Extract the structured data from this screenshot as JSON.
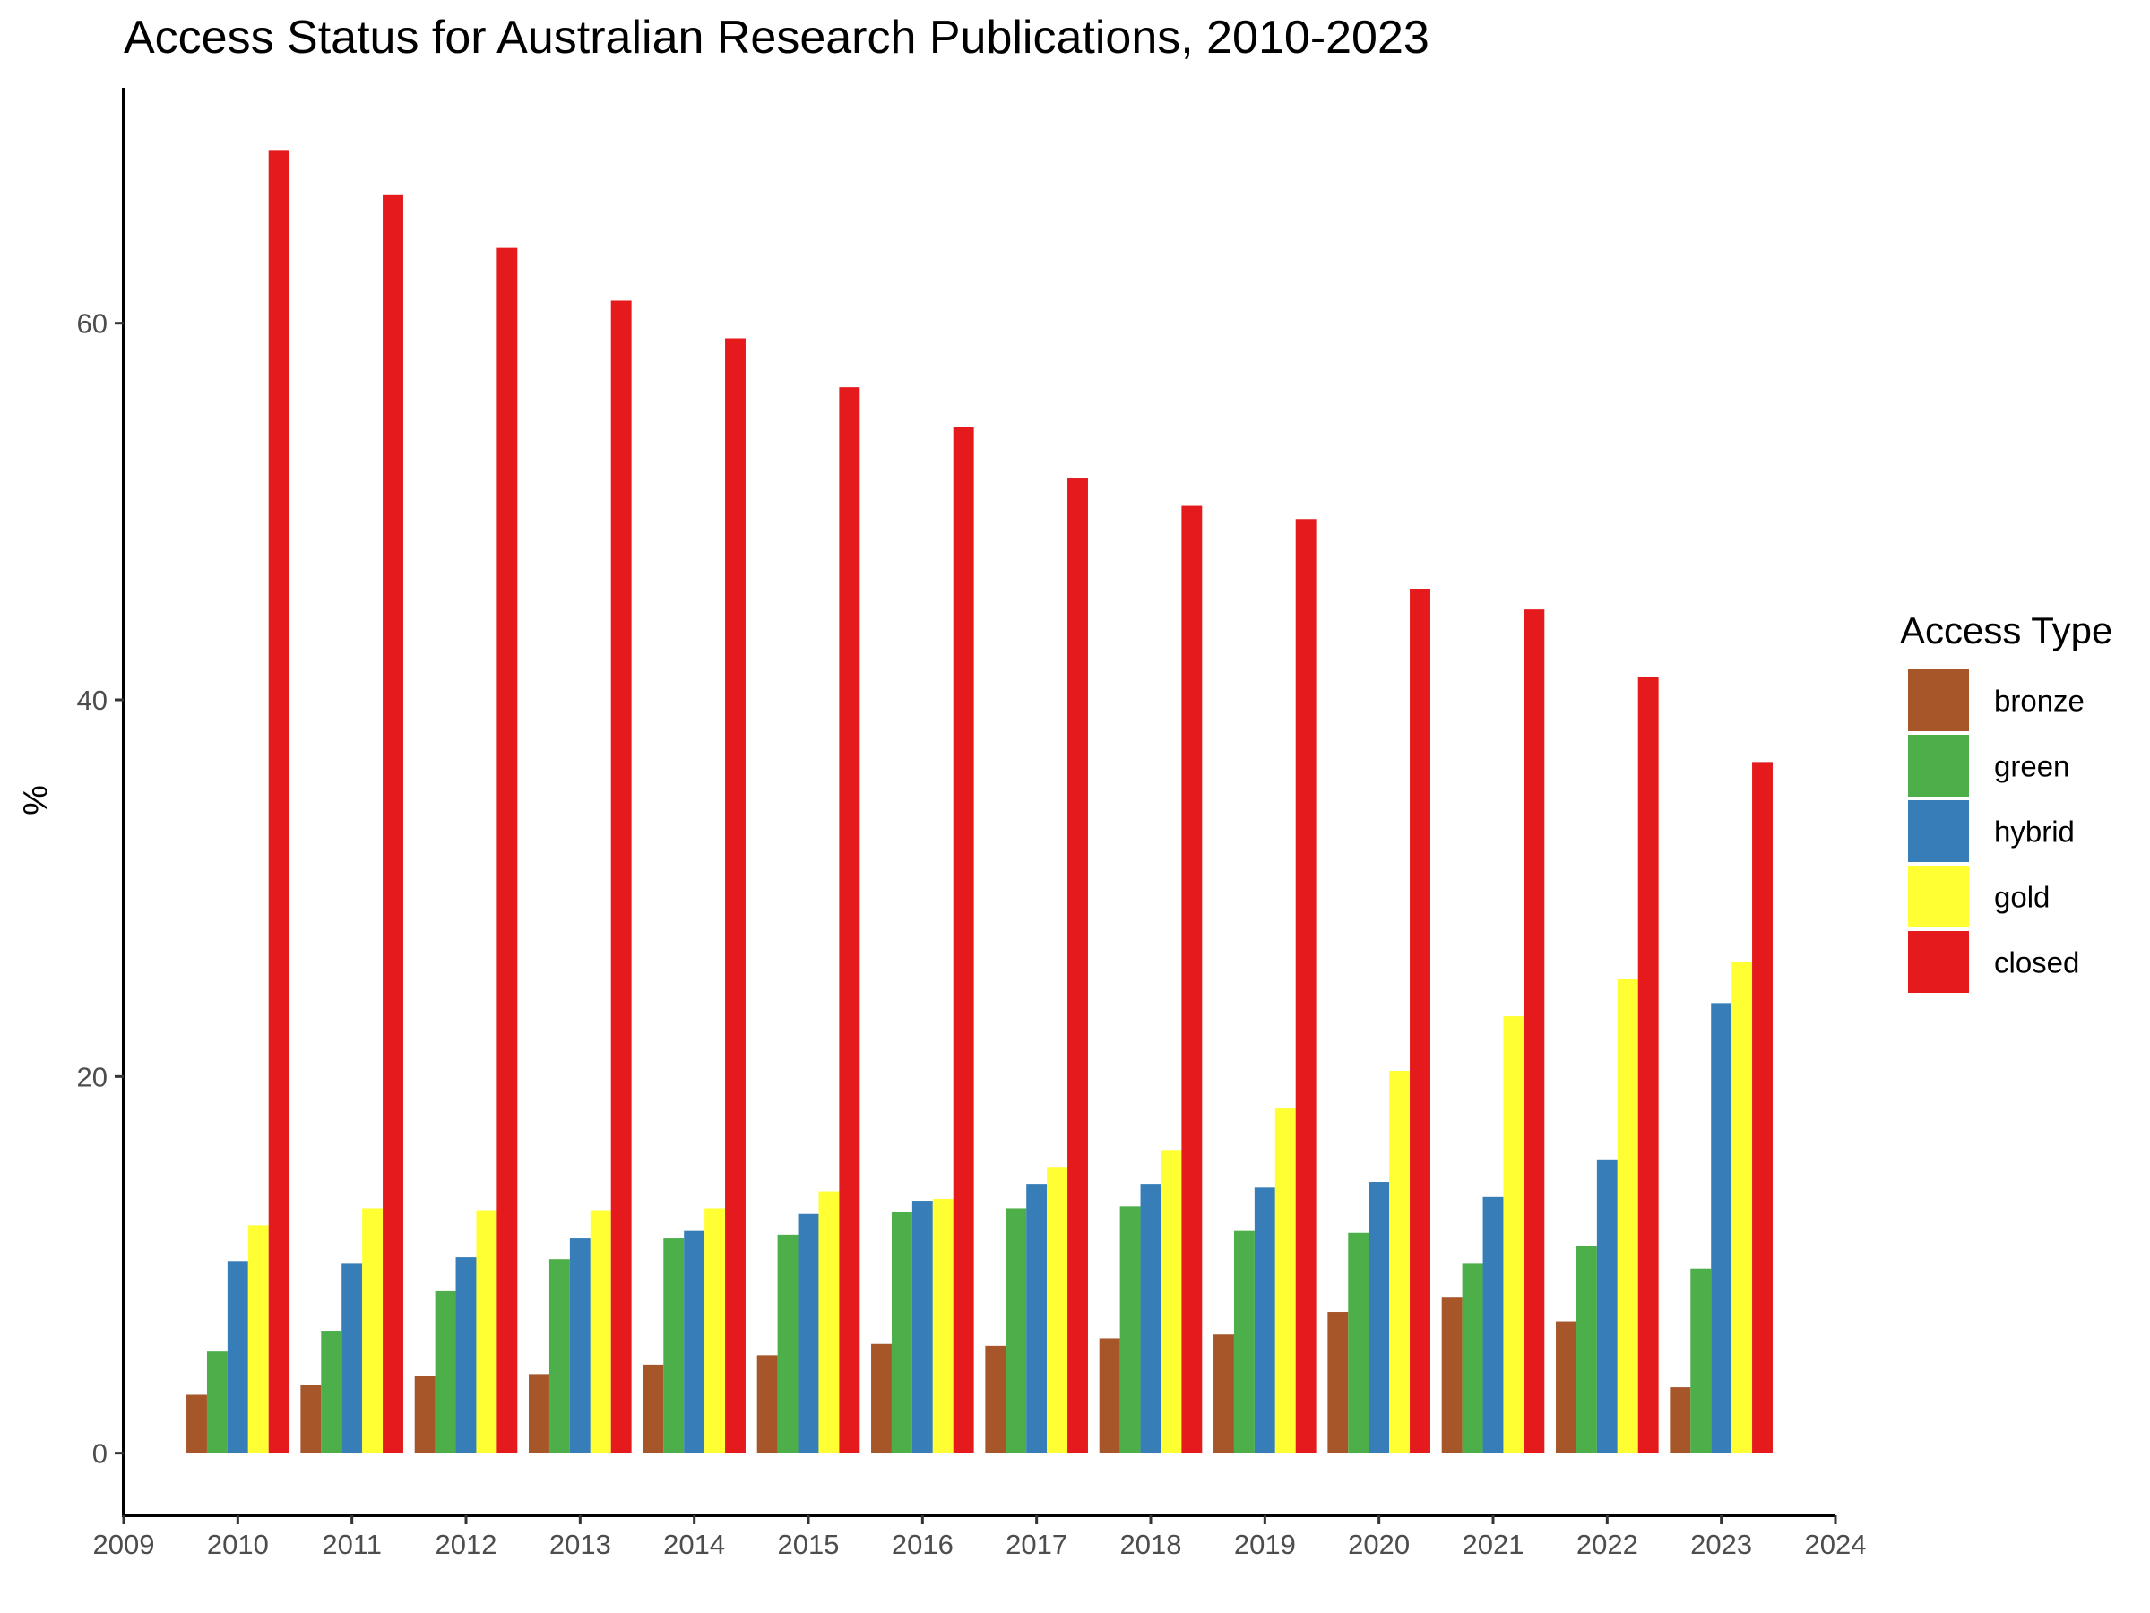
{
  "chart_data": {
    "type": "bar",
    "title": "Access Status for Australian Research Publications, 2010-2023",
    "xlabel": "",
    "ylabel": "%",
    "x_ticks": [
      2009,
      2010,
      2011,
      2012,
      2013,
      2014,
      2015,
      2016,
      2017,
      2018,
      2019,
      2020,
      2021,
      2022,
      2023,
      2024
    ],
    "y_ticks": [
      0,
      20,
      40,
      60
    ],
    "xlim": [
      2009,
      2024
    ],
    "ylim": [
      -3.3,
      72.5
    ],
    "grid": false,
    "legend": {
      "title": "Access Type",
      "position": "right"
    },
    "categories": [
      2010,
      2011,
      2012,
      2013,
      2014,
      2015,
      2016,
      2017,
      2018,
      2019,
      2020,
      2021,
      2022,
      2023
    ],
    "series": [
      {
        "name": "bronze",
        "color": "#A65628",
        "values": [
          3.1,
          3.6,
          4.1,
          4.2,
          4.7,
          5.2,
          5.8,
          5.7,
          6.1,
          6.3,
          7.5,
          8.3,
          7.0,
          3.5
        ]
      },
      {
        "name": "green",
        "color": "#4DAF4A",
        "values": [
          5.4,
          6.5,
          8.6,
          10.3,
          11.4,
          11.6,
          12.8,
          13.0,
          13.1,
          11.8,
          11.7,
          10.1,
          11.0,
          9.8
        ]
      },
      {
        "name": "hybrid",
        "color": "#377EB8",
        "values": [
          10.2,
          10.1,
          10.4,
          11.4,
          11.8,
          12.7,
          13.4,
          14.3,
          14.3,
          14.1,
          14.4,
          13.6,
          15.6,
          23.9
        ]
      },
      {
        "name": "gold",
        "color": "#FFFF33",
        "values": [
          12.1,
          13.0,
          12.9,
          12.9,
          13.0,
          13.9,
          13.5,
          15.2,
          16.1,
          18.3,
          20.3,
          23.2,
          25.2,
          26.1
        ]
      },
      {
        "name": "closed",
        "color": "#E41A1C",
        "values": [
          69.2,
          66.8,
          64.0,
          61.2,
          59.2,
          56.6,
          54.5,
          51.8,
          50.3,
          49.6,
          45.9,
          44.8,
          41.2,
          36.7
        ]
      }
    ]
  }
}
